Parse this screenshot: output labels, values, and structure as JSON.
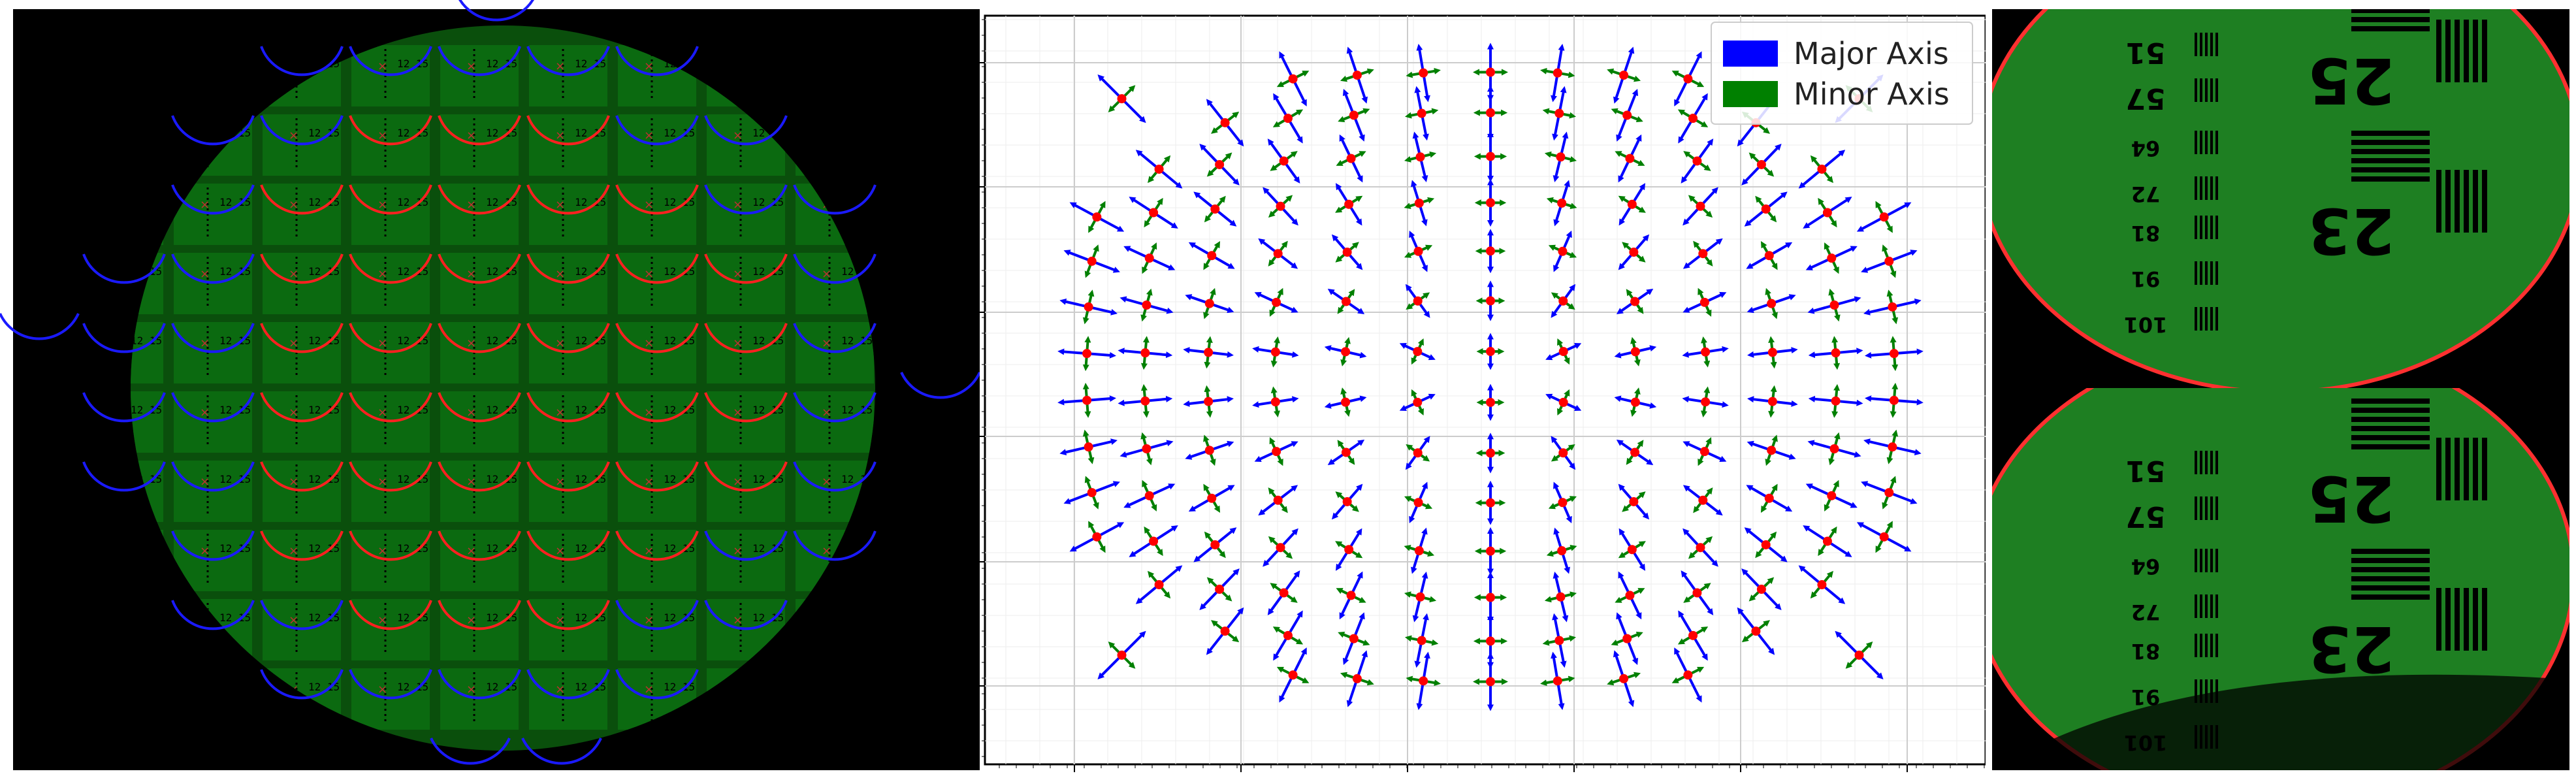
{
  "figure": {
    "panels": [
      "lenslet-mosaic",
      "distortion-quiver-plot",
      "target-closeup"
    ]
  },
  "middle_plot": {
    "legend": {
      "placement": "top-right",
      "items": [
        {
          "label": "Major Axis",
          "color": "#0000ff"
        },
        {
          "label": "Minor Axis",
          "color": "#008000"
        }
      ]
    },
    "grid": true,
    "marker_color": "#ff0000"
  },
  "left_panel": {
    "cell_fill": "#0b6a10",
    "inner_arc_color": "#ff2020",
    "outer_arc_color": "#1a1aff",
    "cell_label": "12 15"
  },
  "right_panel": {
    "numbers": [
      "25",
      "23",
      "51",
      "57",
      "64",
      "72",
      "81",
      "91",
      "101"
    ],
    "edge_color": "#ff3030"
  }
}
